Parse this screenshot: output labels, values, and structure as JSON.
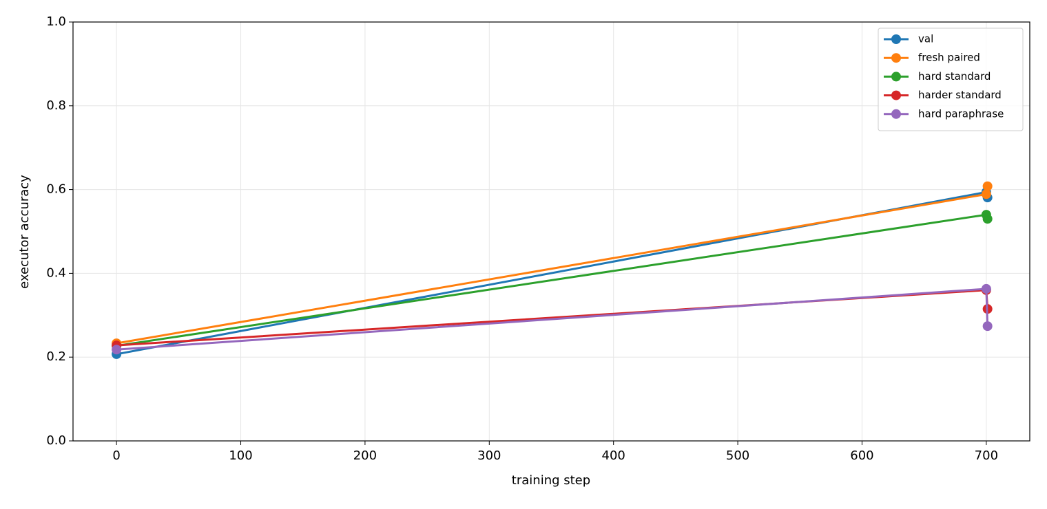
{
  "chart_data": {
    "type": "line",
    "xlabel": "training step",
    "ylabel": "executor accuracy",
    "x": [
      0,
      700,
      701
    ],
    "series": [
      {
        "name": "val",
        "color": "#1f77b4",
        "values": [
          0.207,
          0.594,
          0.581
        ]
      },
      {
        "name": "fresh paired",
        "color": "#ff7f0e",
        "values": [
          0.233,
          0.589,
          0.608
        ]
      },
      {
        "name": "hard standard",
        "color": "#2ca02c",
        "values": [
          0.227,
          0.54,
          0.53
        ]
      },
      {
        "name": "harder standard",
        "color": "#d62728",
        "values": [
          0.228,
          0.36,
          0.315
        ]
      },
      {
        "name": "hard paraphrase",
        "color": "#9467bd",
        "values": [
          0.218,
          0.363,
          0.274
        ]
      }
    ],
    "xlim": [
      -35,
      735
    ],
    "xticks": [
      0,
      100,
      200,
      300,
      400,
      500,
      600,
      700
    ],
    "ylim": [
      0,
      1
    ],
    "yticks": [
      {
        "value": 0,
        "label": "0.0"
      },
      {
        "value": 0.2,
        "label": "0.2"
      },
      {
        "value": 0.4,
        "label": "0.4"
      },
      {
        "value": 0.6,
        "label": "0.6"
      },
      {
        "value": 0.8,
        "label": "0.8"
      },
      {
        "value": 1,
        "label": "1.0"
      }
    ],
    "grid": true,
    "legend": "upper right"
  }
}
